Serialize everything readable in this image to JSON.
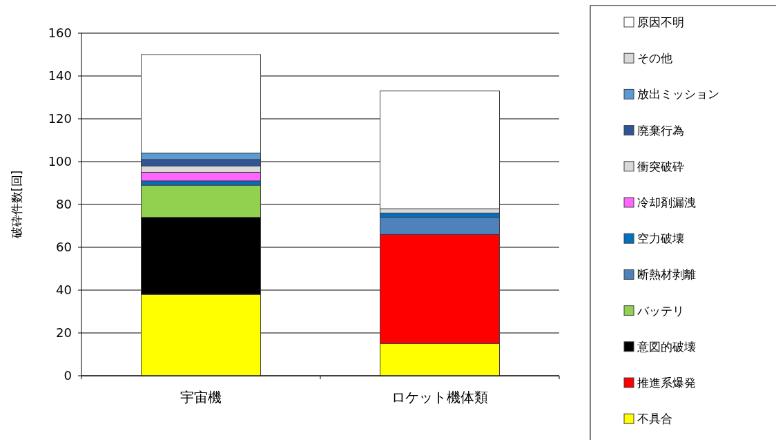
{
  "chart_data": {
    "type": "bar",
    "stacked": true,
    "ylabel": "破砕件数[回]",
    "categories": [
      "宇宙機",
      "ロケット機体類"
    ],
    "ylim": [
      0,
      160
    ],
    "yticks": [
      0,
      20,
      40,
      60,
      80,
      100,
      120,
      140,
      160
    ],
    "grid": "y",
    "legend": "right",
    "series": [
      {
        "name": "不具合",
        "color": "#ffff00",
        "values": [
          38,
          15
        ]
      },
      {
        "name": "推進系爆発",
        "color": "#ff0000",
        "values": [
          0,
          51
        ]
      },
      {
        "name": "意図的破壊",
        "color": "#000000",
        "values": [
          36,
          0
        ]
      },
      {
        "name": "バッテリ",
        "color": "#92d050",
        "values": [
          15,
          0
        ]
      },
      {
        "name": "断熱材剥離",
        "color": "#4f81bd",
        "values": [
          0,
          8
        ]
      },
      {
        "name": "空力破壊",
        "color": "#0070c0",
        "values": [
          2,
          2
        ]
      },
      {
        "name": "冷却剤漏洩",
        "color": "#ff66ff",
        "values": [
          4,
          0
        ]
      },
      {
        "name": "衝突破砕",
        "color": "#d9d9d9",
        "values": [
          3,
          0
        ]
      },
      {
        "name": "廃棄行為",
        "color": "#2f5597",
        "values": [
          3,
          0
        ]
      },
      {
        "name": "放出ミッション",
        "color": "#5b9bd5",
        "values": [
          3,
          0
        ]
      },
      {
        "name": "その他",
        "color": "#d9d9d9",
        "values": [
          0,
          2
        ]
      },
      {
        "name": "原因不明",
        "color": "#ffffff",
        "values": [
          46,
          55
        ]
      }
    ]
  }
}
